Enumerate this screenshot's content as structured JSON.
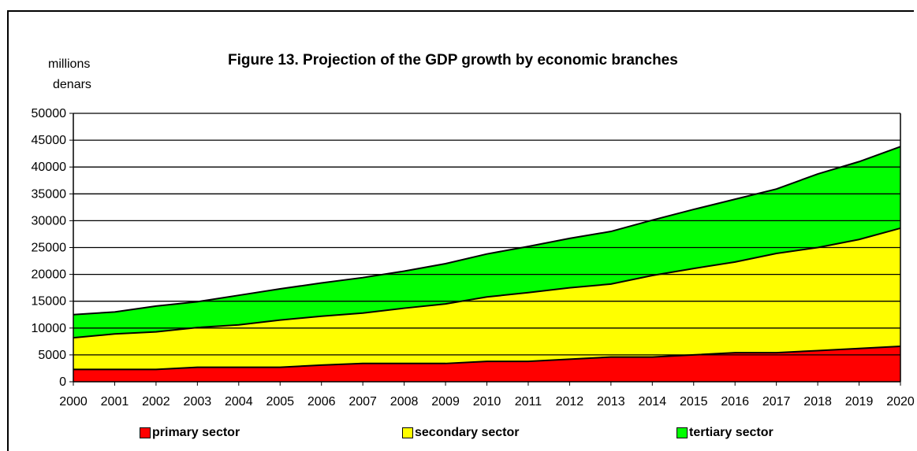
{
  "chart_data": {
    "type": "area",
    "stacked": true,
    "title": "Figure 13. Projection of the GDP growth by economic branches",
    "ylabel_line1": "millions",
    "ylabel_line2": "denars",
    "xlabel": "",
    "ylim": [
      0,
      50000
    ],
    "yticks": [
      0,
      5000,
      10000,
      15000,
      20000,
      25000,
      30000,
      35000,
      40000,
      45000,
      50000
    ],
    "grid": true,
    "legend_position": "bottom",
    "x": [
      "2000",
      "2001",
      "2002",
      "2003",
      "2004",
      "2005",
      "2006",
      "2007",
      "2008",
      "2009",
      "2010",
      "2011",
      "2012",
      "2013",
      "2014",
      "2015",
      "2016",
      "2017",
      "2018",
      "2019",
      "2020"
    ],
    "series": [
      {
        "name": "primary sector",
        "color": "#ff0000",
        "values": [
          2300,
          2300,
          2300,
          2700,
          2700,
          2700,
          3100,
          3400,
          3400,
          3400,
          3800,
          3800,
          4200,
          4600,
          4600,
          5000,
          5400,
          5400,
          5800,
          6200,
          6600
        ]
      },
      {
        "name": "secondary sector",
        "color": "#ffff00",
        "values": [
          5900,
          6600,
          7000,
          7400,
          7900,
          8800,
          9100,
          9400,
          10300,
          11100,
          12000,
          12800,
          13300,
          13600,
          15200,
          16100,
          16900,
          18500,
          19200,
          20300,
          22000
        ]
      },
      {
        "name": "tertiary sector",
        "color": "#00ff00",
        "values": [
          4300,
          4100,
          4800,
          4800,
          5500,
          5800,
          6200,
          6600,
          6900,
          7500,
          8000,
          8600,
          9200,
          9800,
          10300,
          11000,
          11700,
          12000,
          13700,
          14500,
          15200
        ]
      }
    ]
  }
}
